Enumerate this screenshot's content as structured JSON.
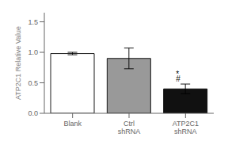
{
  "chart_data": {
    "type": "bar",
    "categories": [
      "Blank",
      "Ctrl\nshRNA",
      "ATP2C1\nshRNA"
    ],
    "values": [
      0.98,
      0.9,
      0.4
    ],
    "errors": [
      0.02,
      0.17,
      0.08
    ],
    "colors": [
      "white",
      "#999999",
      "#111111"
    ],
    "ylabel": "ATP2C1 Relative Value",
    "ylim": [
      0.0,
      1.65
    ],
    "yticks": [
      {
        "value": 0.0,
        "label": "0.0"
      },
      0.5,
      {
        "value": 1.0,
        "label": "1.0"
      },
      1.5
    ],
    "annotations": [
      {
        "text": "*",
        "category": "ATP2C1\nshRNA",
        "y": 0.6
      },
      {
        "text": "#",
        "category": "ATP2C1\nshRNA",
        "y": 0.52
      }
    ]
  }
}
